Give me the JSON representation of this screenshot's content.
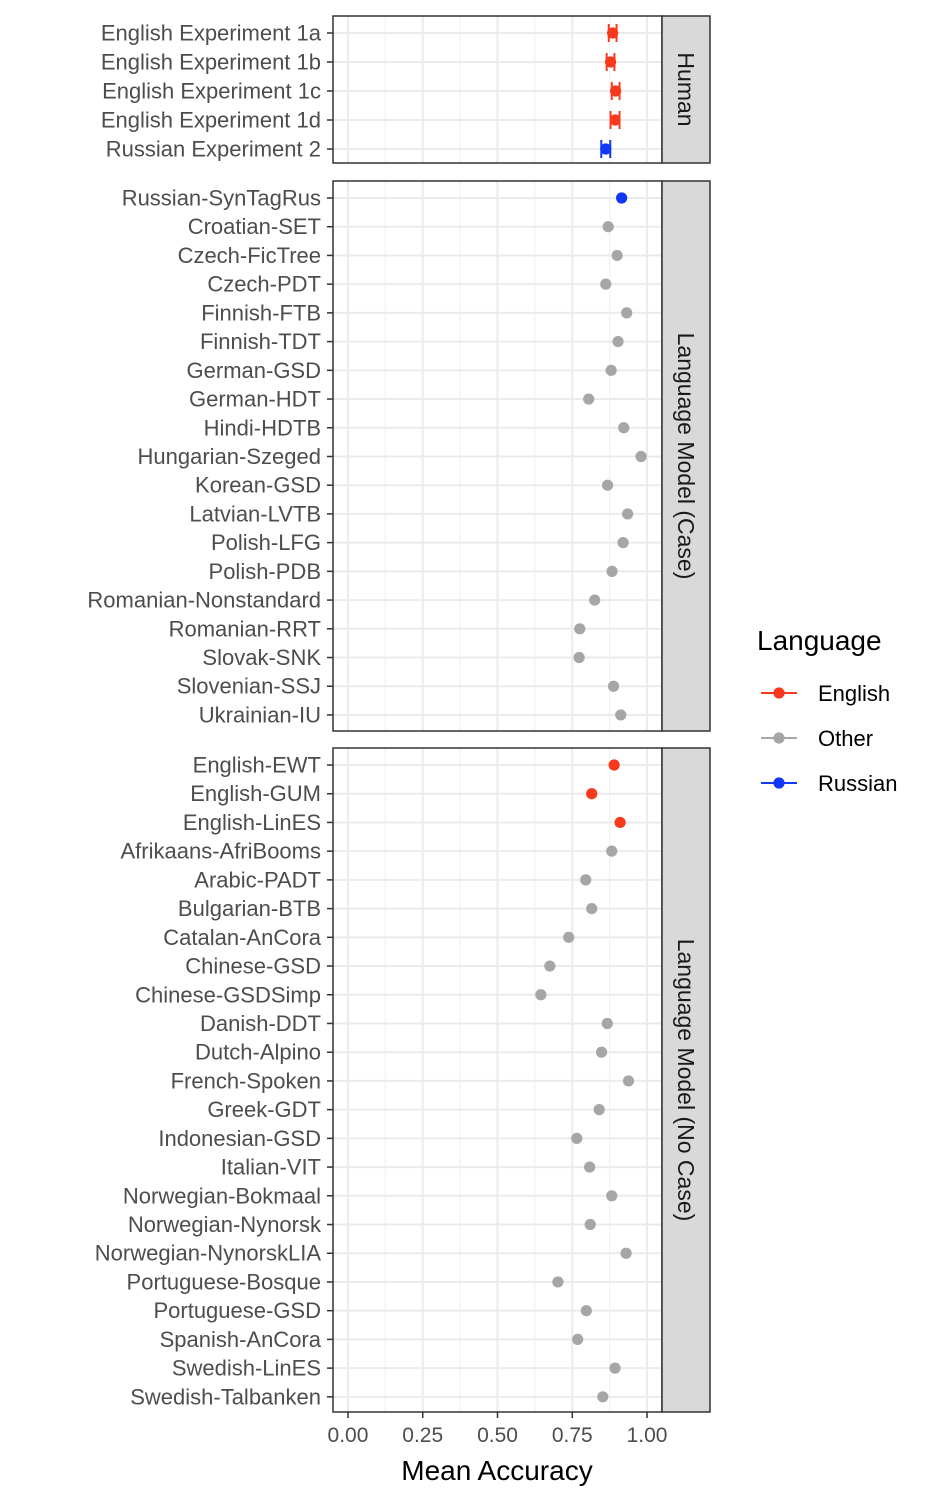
{
  "chart_data": {
    "type": "scatter",
    "xlabel": "Mean Accuracy",
    "xlim": [
      -0.05,
      1.05
    ],
    "x_ticks": [
      0,
      0.25,
      0.5,
      0.75,
      1.0
    ],
    "x_tick_labels": [
      "0.00",
      "0.25",
      "0.50",
      "0.75",
      "1.00"
    ],
    "grid": true,
    "legend": {
      "title": "Language",
      "position": "right",
      "entries": [
        {
          "label": "English",
          "color": "#f8391c"
        },
        {
          "label": "Other",
          "color": "#a6a6a6"
        },
        {
          "label": "Russian",
          "color": "#1238f5"
        }
      ]
    },
    "panels": [
      {
        "strip": "Human",
        "points": [
          {
            "label": "English Experiment 1a",
            "x": 0.885,
            "lo": 0.872,
            "hi": 0.898,
            "group": "English"
          },
          {
            "label": "English Experiment 1b",
            "x": 0.878,
            "lo": 0.865,
            "hi": 0.891,
            "group": "English"
          },
          {
            "label": "English Experiment 1c",
            "x": 0.895,
            "lo": 0.882,
            "hi": 0.908,
            "group": "English"
          },
          {
            "label": "English Experiment 1d",
            "x": 0.893,
            "lo": 0.878,
            "hi": 0.908,
            "group": "English"
          },
          {
            "label": "Russian Experiment 2",
            "x": 0.862,
            "lo": 0.847,
            "hi": 0.877,
            "group": "Russian"
          }
        ]
      },
      {
        "strip": "Language Model (Case)",
        "points": [
          {
            "label": "Russian-SynTagRus",
            "x": 0.915,
            "group": "Russian"
          },
          {
            "label": "Croatian-SET",
            "x": 0.87,
            "group": "Other"
          },
          {
            "label": "Czech-FicTree",
            "x": 0.9,
            "group": "Other"
          },
          {
            "label": "Czech-PDT",
            "x": 0.862,
            "group": "Other"
          },
          {
            "label": "Finnish-FTB",
            "x": 0.932,
            "group": "Other"
          },
          {
            "label": "Finnish-TDT",
            "x": 0.903,
            "group": "Other"
          },
          {
            "label": "German-GSD",
            "x": 0.88,
            "group": "Other"
          },
          {
            "label": "German-HDT",
            "x": 0.805,
            "group": "Other"
          },
          {
            "label": "Hindi-HDTB",
            "x": 0.922,
            "group": "Other"
          },
          {
            "label": "Hungarian-Szeged",
            "x": 0.98,
            "group": "Other"
          },
          {
            "label": "Korean-GSD",
            "x": 0.868,
            "group": "Other"
          },
          {
            "label": "Latvian-LVTB",
            "x": 0.935,
            "group": "Other"
          },
          {
            "label": "Polish-LFG",
            "x": 0.92,
            "group": "Other"
          },
          {
            "label": "Polish-PDB",
            "x": 0.883,
            "group": "Other"
          },
          {
            "label": "Romanian-Nonstandard",
            "x": 0.825,
            "group": "Other"
          },
          {
            "label": "Romanian-RRT",
            "x": 0.775,
            "group": "Other"
          },
          {
            "label": "Slovak-SNK",
            "x": 0.773,
            "group": "Other"
          },
          {
            "label": "Slovenian-SSJ",
            "x": 0.888,
            "group": "Other"
          },
          {
            "label": "Ukrainian-IU",
            "x": 0.912,
            "group": "Other"
          }
        ]
      },
      {
        "strip": "Language Model (No Case)",
        "points": [
          {
            "label": "English-EWT",
            "x": 0.89,
            "group": "English"
          },
          {
            "label": "English-GUM",
            "x": 0.815,
            "group": "English"
          },
          {
            "label": "English-LinES",
            "x": 0.91,
            "group": "English"
          },
          {
            "label": "Afrikaans-AfriBooms",
            "x": 0.882,
            "group": "Other"
          },
          {
            "label": "Arabic-PADT",
            "x": 0.795,
            "group": "Other"
          },
          {
            "label": "Bulgarian-BTB",
            "x": 0.815,
            "group": "Other"
          },
          {
            "label": "Catalan-AnCora",
            "x": 0.738,
            "group": "Other"
          },
          {
            "label": "Chinese-GSD",
            "x": 0.675,
            "group": "Other"
          },
          {
            "label": "Chinese-GSDSimp",
            "x": 0.645,
            "group": "Other"
          },
          {
            "label": "Danish-DDT",
            "x": 0.867,
            "group": "Other"
          },
          {
            "label": "Dutch-Alpino",
            "x": 0.848,
            "group": "Other"
          },
          {
            "label": "French-Spoken",
            "x": 0.938,
            "group": "Other"
          },
          {
            "label": "Greek-GDT",
            "x": 0.84,
            "group": "Other"
          },
          {
            "label": "Indonesian-GSD",
            "x": 0.765,
            "group": "Other"
          },
          {
            "label": "Italian-VIT",
            "x": 0.808,
            "group": "Other"
          },
          {
            "label": "Norwegian-Bokmaal",
            "x": 0.882,
            "group": "Other"
          },
          {
            "label": "Norwegian-Nynorsk",
            "x": 0.81,
            "group": "Other"
          },
          {
            "label": "Norwegian-NynorskLIA",
            "x": 0.93,
            "group": "Other"
          },
          {
            "label": "Portuguese-Bosque",
            "x": 0.702,
            "group": "Other"
          },
          {
            "label": "Portuguese-GSD",
            "x": 0.797,
            "group": "Other"
          },
          {
            "label": "Spanish-AnCora",
            "x": 0.768,
            "group": "Other"
          },
          {
            "label": "Swedish-LinES",
            "x": 0.893,
            "group": "Other"
          },
          {
            "label": "Swedish-Talbanken",
            "x": 0.852,
            "group": "Other"
          }
        ]
      }
    ]
  }
}
